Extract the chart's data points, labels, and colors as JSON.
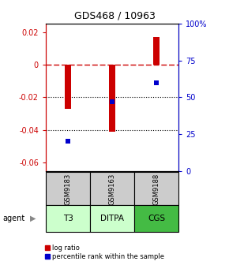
{
  "title": "GDS468 / 10963",
  "samples": [
    "GSM9183",
    "GSM9163",
    "GSM9188"
  ],
  "agents": [
    "T3",
    "DITPA",
    "CGS"
  ],
  "log_ratios": [
    -0.027,
    -0.041,
    0.017
  ],
  "percentile_ranks": [
    20,
    47,
    60
  ],
  "ylim_left": [
    -0.065,
    0.025
  ],
  "ylim_right": [
    0,
    100
  ],
  "yticks_left": [
    0.02,
    0.0,
    -0.02,
    -0.04,
    -0.06
  ],
  "yticks_right": [
    100,
    75,
    50,
    25,
    0
  ],
  "ytick_labels_left": [
    "0.02",
    "0",
    "-0.02",
    "-0.04",
    "-0.06"
  ],
  "ytick_labels_right": [
    "100%",
    "75",
    "50",
    "25",
    "0"
  ],
  "bar_color": "#cc0000",
  "percentile_color": "#0000cc",
  "agent_colors": [
    "#ccffcc",
    "#ccffcc",
    "#44bb44"
  ],
  "sample_box_color": "#cccccc",
  "bar_width": 0.15,
  "zero_line_color": "#cc0000",
  "grid_color": "#000000",
  "legend_log_color": "#cc0000",
  "legend_pct_color": "#0000cc"
}
